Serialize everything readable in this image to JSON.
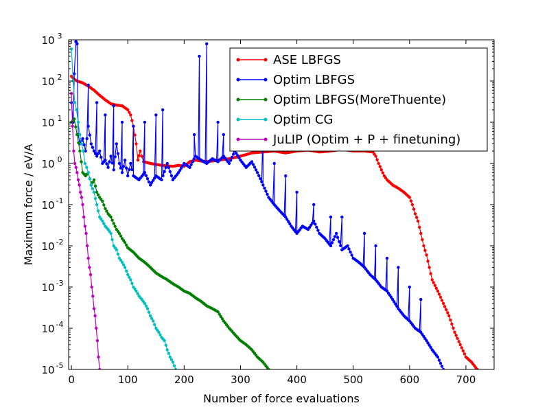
{
  "chart_data": {
    "type": "line",
    "title": "",
    "xlabel": "Number of force evaluations",
    "ylabel": "Maximum force / eV/A",
    "xlim": [
      -5,
      750
    ],
    "ylim_log10": [
      -5,
      3
    ],
    "yscale": "log",
    "x_ticks": [
      0,
      100,
      200,
      300,
      400,
      500,
      600,
      700
    ],
    "x_tick_labels": [
      "0",
      "100",
      "200",
      "300",
      "400",
      "500",
      "600",
      "700"
    ],
    "y_ticks_log10": [
      -5,
      -4,
      -3,
      -2,
      -1,
      0,
      1,
      2,
      3
    ],
    "y_tick_labels": [
      {
        "base": "10",
        "exp": "-5"
      },
      {
        "base": "10",
        "exp": "-4"
      },
      {
        "base": "10",
        "exp": "-3"
      },
      {
        "base": "10",
        "exp": "-2"
      },
      {
        "base": "10",
        "exp": "-1"
      },
      {
        "base": "10",
        "exp": "0"
      },
      {
        "base": "10",
        "exp": "1"
      },
      {
        "base": "10",
        "exp": "2"
      },
      {
        "base": "10",
        "exp": "3"
      }
    ],
    "legend_position": "top-right",
    "series": [
      {
        "name": "ASE LBFGS",
        "color": "#ff0000",
        "points": [
          [
            0,
            130
          ],
          [
            5,
            110
          ],
          [
            10,
            100
          ],
          [
            20,
            90
          ],
          [
            30,
            75
          ],
          [
            40,
            60
          ],
          [
            50,
            45
          ],
          [
            60,
            35
          ],
          [
            70,
            28
          ],
          [
            80,
            26
          ],
          [
            90,
            25
          ],
          [
            100,
            20
          ],
          [
            105,
            15
          ],
          [
            110,
            8
          ],
          [
            115,
            3
          ],
          [
            118,
            1.2
          ],
          [
            122,
            2
          ],
          [
            128,
            1.1
          ],
          [
            140,
            1.0
          ],
          [
            160,
            0.9
          ],
          [
            180,
            0.85
          ],
          [
            190,
            0.9
          ],
          [
            200,
            0.85
          ],
          [
            210,
            1.1
          ],
          [
            220,
            1.2
          ],
          [
            240,
            1.1
          ],
          [
            260,
            1.2
          ],
          [
            280,
            1.3
          ],
          [
            300,
            1.5
          ],
          [
            320,
            1.8
          ],
          [
            340,
            1.9
          ],
          [
            360,
            2.0
          ],
          [
            380,
            1.8
          ],
          [
            400,
            2.0
          ],
          [
            420,
            2.1
          ],
          [
            440,
            1.9
          ],
          [
            460,
            2.0
          ],
          [
            480,
            2.2
          ],
          [
            500,
            2.0
          ],
          [
            520,
            2.0
          ],
          [
            535,
            1.9
          ],
          [
            540,
            1.5
          ],
          [
            545,
            1.0
          ],
          [
            550,
            0.7
          ],
          [
            555,
            0.5
          ],
          [
            560,
            0.4
          ],
          [
            570,
            0.3
          ],
          [
            580,
            0.25
          ],
          [
            590,
            0.2
          ],
          [
            600,
            0.15
          ],
          [
            605,
            0.1
          ],
          [
            610,
            0.06
          ],
          [
            615,
            0.04
          ],
          [
            620,
            0.02
          ],
          [
            625,
            0.01
          ],
          [
            630,
            0.006
          ],
          [
            635,
            0.003
          ],
          [
            640,
            0.0015
          ],
          [
            650,
            0.0008
          ],
          [
            660,
            0.0004
          ],
          [
            670,
            0.0002
          ],
          [
            680,
            8e-05
          ],
          [
            690,
            4e-05
          ],
          [
            700,
            2e-05
          ],
          [
            710,
            1.5e-05
          ],
          [
            720,
            1e-05
          ]
        ]
      },
      {
        "name": "Optim LBFGS",
        "color": "#0000ff",
        "points": [
          [
            0,
            30
          ],
          [
            3,
            10
          ],
          [
            5,
            150
          ],
          [
            8,
            900
          ],
          [
            10,
            800
          ],
          [
            12,
            5
          ],
          [
            15,
            3
          ],
          [
            20,
            4
          ],
          [
            25,
            2
          ],
          [
            30,
            8
          ],
          [
            35,
            3
          ],
          [
            40,
            2
          ],
          [
            45,
            1.5
          ],
          [
            50,
            2
          ],
          [
            55,
            1
          ],
          [
            60,
            1.2
          ],
          [
            65,
            0.8
          ],
          [
            70,
            1.5
          ],
          [
            75,
            0.7
          ],
          [
            80,
            3
          ],
          [
            85,
            1
          ],
          [
            90,
            0.6
          ],
          [
            95,
            1.2
          ],
          [
            100,
            0.5
          ],
          [
            105,
            1
          ],
          [
            110,
            0.5
          ],
          [
            120,
            0.4
          ],
          [
            130,
            0.6
          ],
          [
            140,
            0.3
          ],
          [
            150,
            0.5
          ],
          [
            160,
            0.4
          ],
          [
            170,
            1
          ],
          [
            180,
            0.4
          ],
          [
            190,
            0.6
          ],
          [
            200,
            1
          ],
          [
            210,
            0.8
          ],
          [
            220,
            1.5
          ],
          [
            230,
            1.2
          ],
          [
            240,
            1
          ],
          [
            250,
            1.3
          ],
          [
            260,
            1.1
          ],
          [
            270,
            1.5
          ],
          [
            280,
            1
          ],
          [
            290,
            2
          ],
          [
            300,
            1.2
          ],
          [
            310,
            0.8
          ],
          [
            320,
            1.1
          ],
          [
            330,
            0.6
          ],
          [
            340,
            0.3
          ],
          [
            350,
            0.15
          ],
          [
            360,
            0.1
          ],
          [
            370,
            0.07
          ],
          [
            380,
            0.05
          ],
          [
            390,
            0.03
          ],
          [
            400,
            0.02
          ],
          [
            410,
            0.03
          ],
          [
            420,
            0.025
          ],
          [
            430,
            0.04
          ],
          [
            440,
            0.02
          ],
          [
            450,
            0.015
          ],
          [
            460,
            0.01
          ],
          [
            470,
            0.02
          ],
          [
            480,
            0.008
          ],
          [
            490,
            0.01
          ],
          [
            500,
            0.005
          ],
          [
            510,
            0.004
          ],
          [
            520,
            0.003
          ],
          [
            530,
            0.002
          ],
          [
            540,
            0.0015
          ],
          [
            550,
            0.001
          ],
          [
            560,
            0.0008
          ],
          [
            570,
            0.0005
          ],
          [
            580,
            0.0003
          ],
          [
            590,
            0.0002
          ],
          [
            600,
            0.00015
          ],
          [
            610,
            0.0001
          ],
          [
            620,
            8e-05
          ],
          [
            630,
            5e-05
          ],
          [
            640,
            3e-05
          ],
          [
            650,
            2e-05
          ],
          [
            660,
            1e-05
          ]
        ],
        "spikes": [
          [
            8,
            900
          ],
          [
            10,
            800
          ],
          [
            30,
            80
          ],
          [
            45,
            30
          ],
          [
            60,
            15
          ],
          [
            75,
            25
          ],
          [
            90,
            10
          ],
          [
            110,
            8
          ],
          [
            130,
            10
          ],
          [
            150,
            15
          ],
          [
            162,
            20
          ],
          [
            240,
            800
          ],
          [
            218,
            5
          ],
          [
            227,
            400
          ],
          [
            260,
            10
          ],
          [
            270,
            5
          ],
          [
            290,
            5
          ],
          [
            340,
            8
          ],
          [
            360,
            1
          ],
          [
            380,
            0.5
          ],
          [
            400,
            0.2
          ],
          [
            430,
            0.1
          ],
          [
            460,
            0.05
          ],
          [
            480,
            0.05
          ],
          [
            520,
            0.02
          ],
          [
            540,
            0.01
          ],
          [
            560,
            0.005
          ],
          [
            580,
            0.003
          ],
          [
            600,
            0.001
          ],
          [
            620,
            0.0005
          ]
        ]
      },
      {
        "name": "Optim LBFGS(MoreThuente)",
        "color": "#008000",
        "points": [
          [
            0,
            10
          ],
          [
            5,
            12
          ],
          [
            10,
            5
          ],
          [
            15,
            2
          ],
          [
            20,
            0.6
          ],
          [
            25,
            0.5
          ],
          [
            30,
            0.6
          ],
          [
            35,
            0.3
          ],
          [
            40,
            0.4
          ],
          [
            45,
            0.2
          ],
          [
            50,
            0.15
          ],
          [
            55,
            0.12
          ],
          [
            60,
            0.08
          ],
          [
            65,
            0.06
          ],
          [
            70,
            0.05
          ],
          [
            75,
            0.035
          ],
          [
            80,
            0.025
          ],
          [
            85,
            0.02
          ],
          [
            90,
            0.015
          ],
          [
            95,
            0.012
          ],
          [
            100,
            0.009
          ],
          [
            110,
            0.007
          ],
          [
            120,
            0.005
          ],
          [
            130,
            0.004
          ],
          [
            140,
            0.003
          ],
          [
            150,
            0.0022
          ],
          [
            160,
            0.0018
          ],
          [
            170,
            0.0015
          ],
          [
            180,
            0.0012
          ],
          [
            190,
            0.001
          ],
          [
            200,
            0.0008
          ],
          [
            210,
            0.0007
          ],
          [
            220,
            0.00055
          ],
          [
            230,
            0.00045
          ],
          [
            240,
            0.00035
          ],
          [
            250,
            0.0003
          ],
          [
            260,
            0.00025
          ],
          [
            270,
            0.00015
          ],
          [
            280,
            0.0001
          ],
          [
            290,
            7e-05
          ],
          [
            300,
            5e-05
          ],
          [
            310,
            4e-05
          ],
          [
            320,
            3e-05
          ],
          [
            330,
            2e-05
          ],
          [
            340,
            1.5e-05
          ],
          [
            350,
            1e-05
          ]
        ]
      },
      {
        "name": "Optim CG",
        "color": "#00bfbf",
        "points": [
          [
            0,
            600
          ],
          [
            3,
            100
          ],
          [
            6,
            30
          ],
          [
            9,
            20
          ],
          [
            12,
            10
          ],
          [
            15,
            5
          ],
          [
            18,
            3
          ],
          [
            21,
            2
          ],
          [
            24,
            1
          ],
          [
            27,
            0.8
          ],
          [
            30,
            0.6
          ],
          [
            35,
            0.3
          ],
          [
            40,
            0.2
          ],
          [
            45,
            0.1
          ],
          [
            50,
            0.05
          ],
          [
            55,
            0.04
          ],
          [
            60,
            0.03
          ],
          [
            65,
            0.025
          ],
          [
            70,
            0.02
          ],
          [
            75,
            0.01
          ],
          [
            80,
            0.008
          ],
          [
            85,
            0.005
          ],
          [
            90,
            0.004
          ],
          [
            95,
            0.003
          ],
          [
            100,
            0.002
          ],
          [
            105,
            0.0015
          ],
          [
            110,
            0.001
          ],
          [
            115,
            0.0008
          ],
          [
            120,
            0.0006
          ],
          [
            125,
            0.0005
          ],
          [
            130,
            0.0004
          ],
          [
            135,
            0.0003
          ],
          [
            140,
            0.0002
          ],
          [
            145,
            0.00015
          ],
          [
            150,
            0.0001
          ],
          [
            155,
            8e-05
          ],
          [
            160,
            6e-05
          ],
          [
            165,
            5e-05
          ],
          [
            170,
            3e-05
          ],
          [
            175,
            2e-05
          ],
          [
            180,
            1.5e-05
          ],
          [
            185,
            1e-05
          ]
        ]
      },
      {
        "name": "JuLIP (Optim + P + finetuning)",
        "color": "#bf00bf",
        "points": [
          [
            0,
            50
          ],
          [
            2,
            8
          ],
          [
            4,
            2
          ],
          [
            6,
            1
          ],
          [
            8,
            0.8
          ],
          [
            10,
            0.6
          ],
          [
            12,
            0.4
          ],
          [
            14,
            0.3
          ],
          [
            16,
            0.2
          ],
          [
            18,
            0.15
          ],
          [
            20,
            0.1
          ],
          [
            22,
            0.05
          ],
          [
            24,
            0.03
          ],
          [
            26,
            0.02
          ],
          [
            28,
            0.01
          ],
          [
            30,
            0.005
          ],
          [
            32,
            0.003
          ],
          [
            34,
            0.002
          ],
          [
            36,
            0.001
          ],
          [
            38,
            0.0006
          ],
          [
            40,
            0.0003
          ],
          [
            42,
            0.0002
          ],
          [
            44,
            0.0001
          ],
          [
            46,
            5e-05
          ],
          [
            48,
            2e-05
          ],
          [
            50,
            1e-05
          ]
        ]
      }
    ]
  }
}
